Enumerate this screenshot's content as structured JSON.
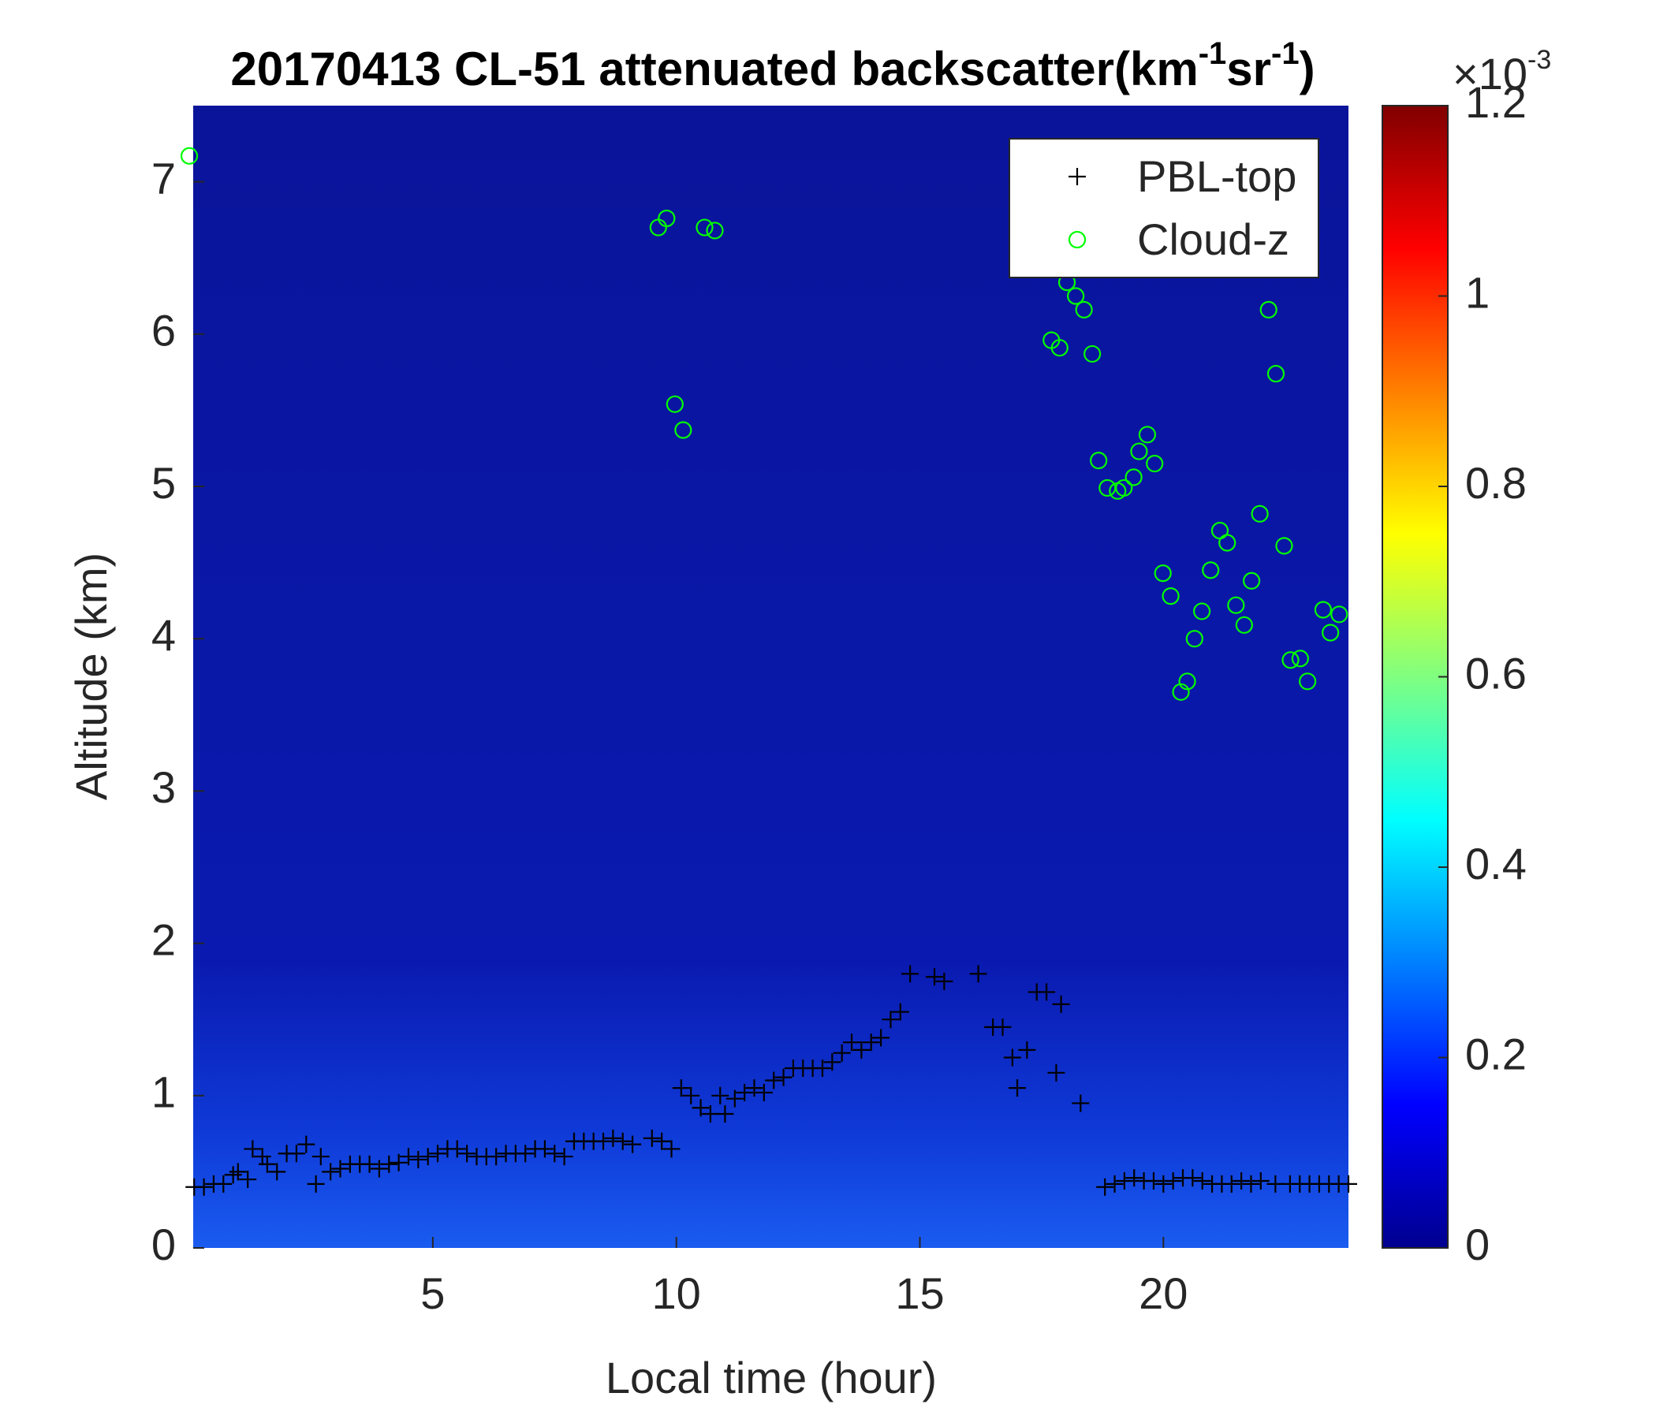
{
  "chart_data": {
    "type": "scatter",
    "title": [
      "20170413  CL-51 attenuated backscatter(km",
      "-1",
      "sr",
      "-1",
      ")"
    ],
    "xlabel": "Local time (hour)",
    "ylabel": "Altitude (km)",
    "xlim": [
      0.08,
      23.8
    ],
    "xticks": [
      5,
      10,
      15,
      20
    ],
    "ylim": [
      0,
      7.5
    ],
    "yticks": [
      0,
      1,
      2,
      3,
      4,
      5,
      6,
      7
    ],
    "background": "#0a149a",
    "legend": "upper right",
    "colorbar": {
      "scale": "×10",
      "exponent": "-3",
      "clim": [
        0,
        1.2
      ],
      "cticks": [
        0,
        0.2,
        0.4,
        0.6,
        0.8,
        1,
        1.2
      ],
      "colormap": [
        "#00008f",
        "#0000ff",
        "#0080ff",
        "#00ffff",
        "#80ff80",
        "#ffff00",
        "#ff8000",
        "#ff0000",
        "#800000"
      ]
    },
    "series": [
      {
        "name": "PBL-top",
        "marker": "plus",
        "color": "#000000",
        "x": [
          0.1,
          0.3,
          0.5,
          0.7,
          0.9,
          1.0,
          1.2,
          1.3,
          1.5,
          1.6,
          1.8,
          2.0,
          2.2,
          2.4,
          2.6,
          2.7,
          2.9,
          3.1,
          3.3,
          3.5,
          3.7,
          3.9,
          4.1,
          4.3,
          4.5,
          4.7,
          4.9,
          5.1,
          5.3,
          5.5,
          5.7,
          5.9,
          6.1,
          6.3,
          6.5,
          6.7,
          6.9,
          7.1,
          7.3,
          7.5,
          7.7,
          7.9,
          8.1,
          8.3,
          8.5,
          8.7,
          8.9,
          9.1,
          9.5,
          9.7,
          9.9,
          10.1,
          10.3,
          10.5,
          10.7,
          10.9,
          11.0,
          11.2,
          11.4,
          11.6,
          11.8,
          12.0,
          12.2,
          12.4,
          12.6,
          12.8,
          13.0,
          13.2,
          13.4,
          13.6,
          13.8,
          14.0,
          14.2,
          14.4,
          14.6,
          14.8,
          15.3,
          15.5,
          16.2,
          16.5,
          16.7,
          16.9,
          17.0,
          17.2,
          17.4,
          17.6,
          17.8,
          17.9,
          18.3,
          18.8,
          19.0,
          19.2,
          19.4,
          19.6,
          19.8,
          20.0,
          20.2,
          20.4,
          20.6,
          20.8,
          21.0,
          21.2,
          21.4,
          21.6,
          21.8,
          22.0,
          22.3,
          22.6,
          22.8,
          23.0,
          23.2,
          23.4,
          23.6,
          23.8
        ],
        "values": [
          0.4,
          0.4,
          0.42,
          0.42,
          0.48,
          0.5,
          0.45,
          0.65,
          0.6,
          0.55,
          0.5,
          0.62,
          0.62,
          0.68,
          0.42,
          0.6,
          0.5,
          0.52,
          0.55,
          0.55,
          0.55,
          0.52,
          0.55,
          0.56,
          0.6,
          0.58,
          0.6,
          0.62,
          0.65,
          0.65,
          0.62,
          0.6,
          0.6,
          0.6,
          0.62,
          0.62,
          0.62,
          0.65,
          0.65,
          0.62,
          0.6,
          0.7,
          0.7,
          0.7,
          0.7,
          0.72,
          0.7,
          0.68,
          0.72,
          0.7,
          0.65,
          1.05,
          1.0,
          0.92,
          0.88,
          1.0,
          0.88,
          0.98,
          1.02,
          1.05,
          1.02,
          1.1,
          1.12,
          1.18,
          1.18,
          1.18,
          1.18,
          1.22,
          1.28,
          1.35,
          1.3,
          1.35,
          1.38,
          1.5,
          1.55,
          1.8,
          1.78,
          1.75,
          1.8,
          1.45,
          1.45,
          1.25,
          1.05,
          1.3,
          1.68,
          1.68,
          1.15,
          1.6,
          0.95,
          0.4,
          0.42,
          0.44,
          0.46,
          0.44,
          0.44,
          0.42,
          0.44,
          0.46,
          0.46,
          0.44,
          0.42,
          0.42,
          0.42,
          0.44,
          0.42,
          0.44,
          0.42,
          0.42,
          0.42,
          0.42,
          0.42,
          0.42,
          0.42,
          0.42
        ]
      },
      {
        "name": "Cloud-z",
        "marker": "circle",
        "color": "#00ff00",
        "x": [
          0.0,
          9.63,
          9.8,
          9.97,
          10.14,
          10.58,
          10.79,
          18.02,
          18.2,
          18.37,
          17.7,
          17.87,
          18.54,
          18.67,
          18.85,
          19.06,
          19.19,
          19.39,
          19.5,
          19.67,
          19.82,
          19.99,
          20.15,
          20.36,
          20.49,
          20.64,
          20.79,
          20.97,
          21.16,
          21.31,
          21.49,
          21.66,
          21.81,
          21.98,
          22.16,
          22.31,
          22.48,
          22.61,
          22.81,
          22.96,
          23.28,
          23.43,
          23.61
        ],
        "values": [
          7.17,
          6.7,
          6.76,
          5.54,
          5.37,
          6.7,
          6.68,
          6.34,
          6.25,
          6.16,
          5.96,
          5.91,
          5.87,
          5.17,
          4.99,
          4.97,
          4.99,
          5.06,
          5.23,
          5.34,
          5.15,
          4.43,
          4.28,
          3.65,
          3.72,
          4.0,
          4.18,
          4.45,
          4.71,
          4.63,
          4.22,
          4.09,
          4.38,
          4.82,
          6.16,
          5.74,
          4.61,
          3.86,
          3.87,
          3.72,
          4.19,
          4.04,
          4.16
        ]
      }
    ]
  }
}
